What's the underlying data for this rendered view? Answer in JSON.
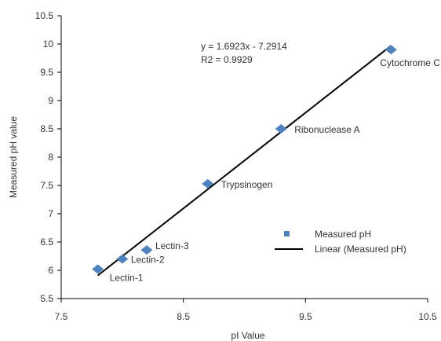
{
  "chart_data": {
    "type": "scatter",
    "xlabel": "pI Value",
    "ylabel": "Measured pH value",
    "xlim": [
      7.5,
      10.5
    ],
    "ylim": [
      5.5,
      10.5
    ],
    "x_ticks": [
      "7.5",
      "8.5",
      "9.5",
      "10.5"
    ],
    "y_ticks": [
      "5.5",
      "6",
      "6.5",
      "7",
      "7.5",
      "8",
      "8.5",
      "9",
      "9.5",
      "10",
      "10.5"
    ],
    "grid": false,
    "series": [
      {
        "name": "Measured pH",
        "color": "#4f81bd",
        "points": [
          {
            "label": "Lectin-1",
            "x": 7.8,
            "y": 6.02
          },
          {
            "label": "Lectin-2",
            "x": 8.0,
            "y": 6.2
          },
          {
            "label": "Lectin-3",
            "x": 8.2,
            "y": 6.36
          },
          {
            "label": "Trypsinogen",
            "x": 8.7,
            "y": 7.53
          },
          {
            "label": "Ribonuclease A",
            "x": 9.3,
            "y": 8.5
          },
          {
            "label": "Cytochrome C",
            "x": 10.2,
            "y": 9.9
          }
        ]
      }
    ],
    "trendline": {
      "name": "Linear (Measured pH)",
      "slope": 1.6923,
      "intercept": -7.2914,
      "x_range": [
        7.8,
        10.2
      ],
      "color": "#000000",
      "equation_text": "y = 1.6923x - 7.2914",
      "r2_text": "R2 = 0.9929"
    },
    "legend_position": "right"
  }
}
